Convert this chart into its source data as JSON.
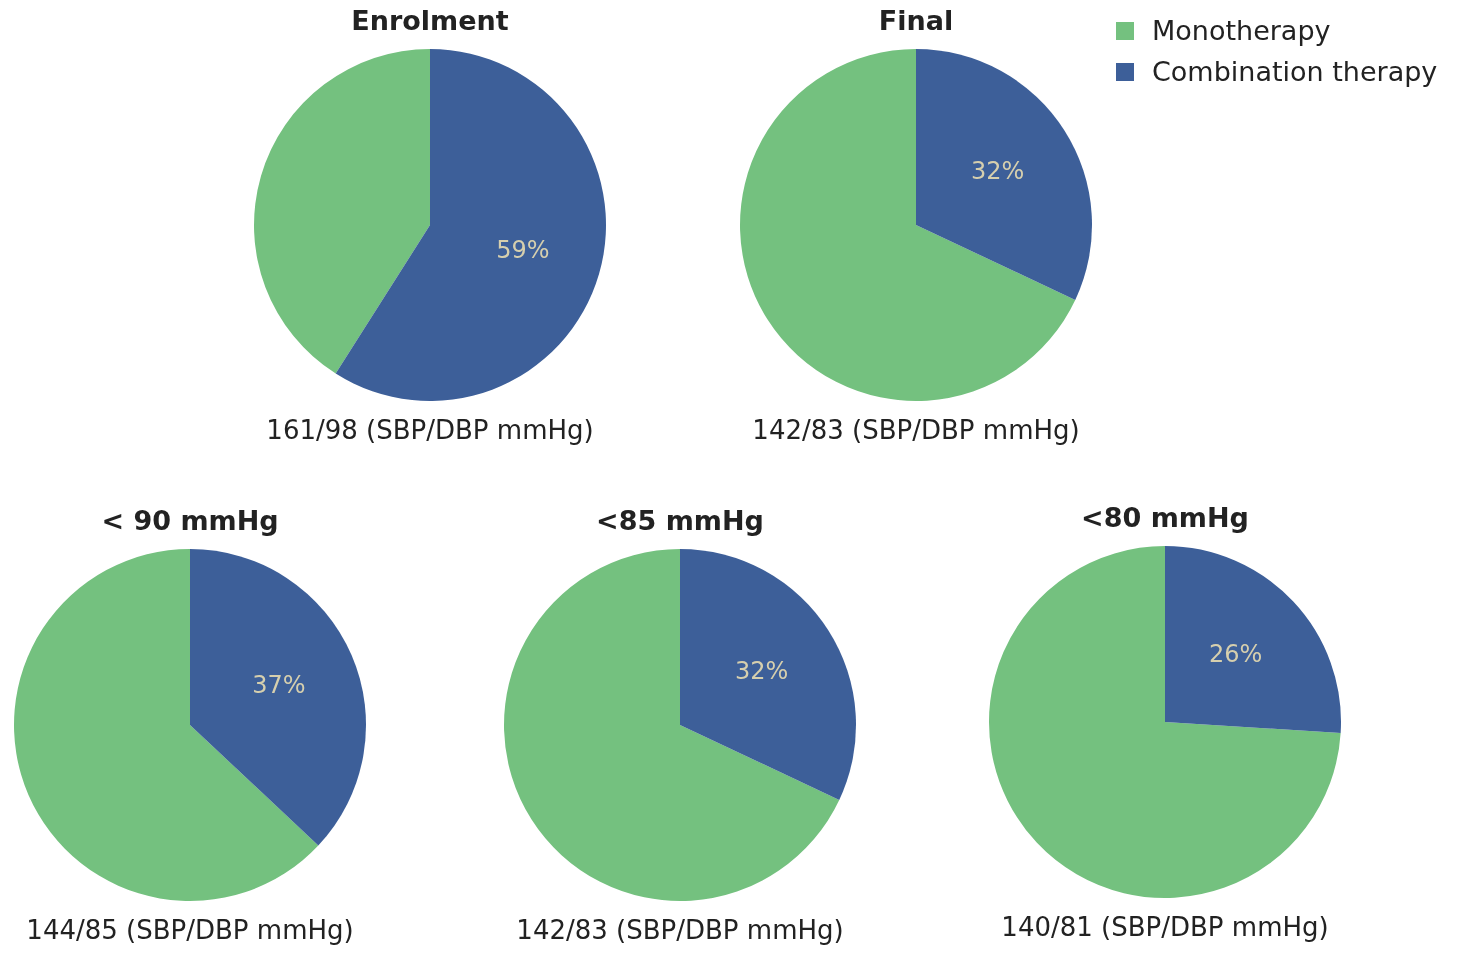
{
  "chart_data": [
    {
      "type": "pie",
      "title": "Enrolment",
      "categories": [
        null,
        null
      ],
      "values": [
        41,
        59
      ],
      "value_labels": [
        null,
        "59%"
      ],
      "colors": [
        "#74c17f",
        "#3d5f99"
      ],
      "annotations": [
        "161/98 (SBP/DBP mmHg)"
      ]
    },
    {
      "type": "pie",
      "title": "Final",
      "categories": [
        "Monotherapy",
        "Combination therapy"
      ],
      "values": [
        68,
        32
      ],
      "value_labels": [
        null,
        "32%"
      ],
      "colors": [
        "#74c17f",
        "#3d5f99"
      ],
      "legend": "top right",
      "annotations": [
        "142/83 (SBP/DBP mmHg)"
      ]
    },
    {
      "type": "pie",
      "title": "< 90 mmHg",
      "categories": [
        null,
        null
      ],
      "values": [
        63,
        37
      ],
      "value_labels": [
        null,
        "37%"
      ],
      "colors": [
        "#74c17f",
        "#3d5f99"
      ],
      "annotations": [
        "144/85 (SBP/DBP mmHg)"
      ]
    },
    {
      "type": "pie",
      "title": "<85 mmHg",
      "categories": [
        null,
        null
      ],
      "values": [
        68,
        32
      ],
      "value_labels": [
        null,
        "32%"
      ],
      "colors": [
        "#74c17f",
        "#3d5f99"
      ],
      "annotations": [
        "142/83 (SBP/DBP mmHg)"
      ]
    },
    {
      "type": "pie",
      "title": "<80 mmHg",
      "categories": [
        null,
        null
      ],
      "values": [
        74,
        26
      ],
      "value_labels": [
        null,
        "26%"
      ],
      "colors": [
        "#74c17f",
        "#3d5f99"
      ],
      "annotations": [
        "140/81 (SBP/DBP mmHg)"
      ]
    }
  ]
}
